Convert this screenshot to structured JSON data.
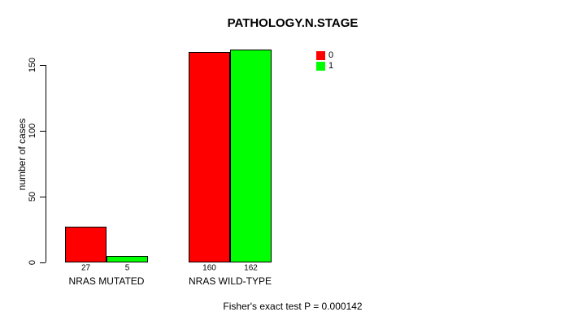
{
  "chart_data": {
    "type": "bar",
    "grouped": true,
    "title": "PATHOLOGY.N.STAGE",
    "xlabel": "",
    "ylabel": "number of cases",
    "categories": [
      "NRAS MUTATED",
      "NRAS WILD-TYPE"
    ],
    "series": [
      {
        "name": "0",
        "color": "#FF0000",
        "values": [
          27,
          160
        ]
      },
      {
        "name": "1",
        "color": "#00FF00",
        "values": [
          5,
          162
        ]
      }
    ],
    "yticks": [
      0,
      50,
      100,
      150
    ],
    "ylim": [
      0,
      165
    ],
    "grid": false,
    "legend_position": "top-right",
    "show_value_labels": true,
    "annotation": "Fisher's exact test P = 0.000142"
  },
  "colors": {
    "series0": "#FF0000",
    "series1": "#00FF00",
    "axis": "#000000",
    "background": "#FFFFFF"
  }
}
